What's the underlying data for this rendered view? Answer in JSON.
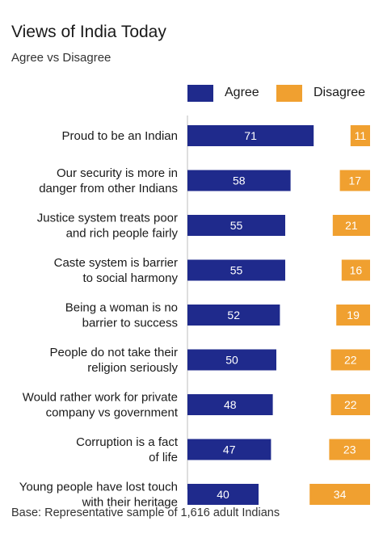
{
  "chart_data": {
    "type": "bar",
    "title": "Views of India Today",
    "subtitle": "Agree vs Disagree",
    "categories": [
      [
        "Proud to be an Indian"
      ],
      [
        "Our security is more in",
        "danger from other Indians"
      ],
      [
        "Justice system treats poor",
        "and rich people fairly"
      ],
      [
        "Caste system is barrier",
        "to social harmony"
      ],
      [
        "Being a woman is no",
        "barrier to success"
      ],
      [
        "People do not take their",
        "religion seriously"
      ],
      [
        "Would rather work for private",
        "company vs government"
      ],
      [
        "Corruption is a fact",
        "of life"
      ],
      [
        "Young people have lost touch",
        "with their heritage"
      ]
    ],
    "series": [
      {
        "name": "Agree",
        "color": "#1f2a8c",
        "values": [
          71,
          58,
          55,
          55,
          52,
          50,
          48,
          47,
          40
        ]
      },
      {
        "name": "Disagree",
        "color": "#f0a030",
        "values": [
          11,
          17,
          21,
          16,
          19,
          22,
          22,
          23,
          34
        ]
      }
    ],
    "legend_position": "top-right",
    "grid": false
  },
  "footer": "Base: Representative sample of 1,616 adult Indians"
}
